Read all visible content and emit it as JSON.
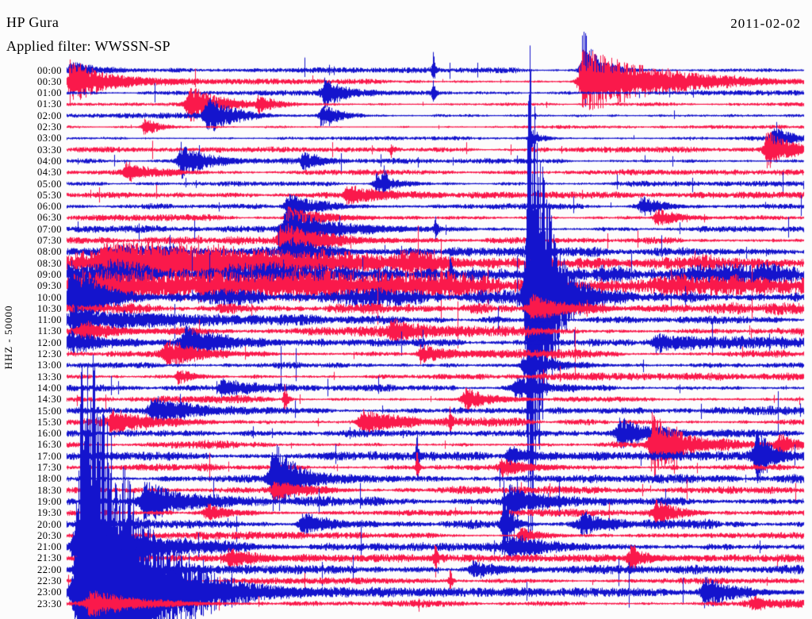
{
  "header": {
    "station": "HP Gura",
    "filter_line": "Applied filter: WWSSN-SP",
    "date": "2011-02-02"
  },
  "axis": {
    "vertical_label": "HHZ - 50000"
  },
  "colors": {
    "blue_trace": "#1414cd",
    "red_trace": "#fa194b",
    "background": "#fcfcfc",
    "text": "#000000"
  },
  "chart_data": {
    "type": "helicorder",
    "title": "HP Gura",
    "date": "2011-02-02",
    "filter": "WWSSN-SP",
    "channel_label": "HHZ - 50000",
    "minutes_per_row": 30,
    "legend": "traces alternate blue (hh:00) and red (hh:30)",
    "rows": [
      {
        "label": "00:00",
        "color": "blue",
        "activity": 2.2
      },
      {
        "label": "00:30",
        "color": "red",
        "activity": 2.2
      },
      {
        "label": "01:00",
        "color": "blue",
        "activity": 2.0
      },
      {
        "label": "01:30",
        "color": "red",
        "activity": 2.0
      },
      {
        "label": "02:00",
        "color": "blue",
        "activity": 2.2
      },
      {
        "label": "02:30",
        "color": "red",
        "activity": 1.8
      },
      {
        "label": "03:00",
        "color": "blue",
        "activity": 2.0
      },
      {
        "label": "03:30",
        "color": "red",
        "activity": 2.2
      },
      {
        "label": "04:00",
        "color": "blue",
        "activity": 2.5
      },
      {
        "label": "04:30",
        "color": "red",
        "activity": 2.2
      },
      {
        "label": "05:00",
        "color": "blue",
        "activity": 2.2
      },
      {
        "label": "05:30",
        "color": "red",
        "activity": 2.5
      },
      {
        "label": "06:00",
        "color": "blue",
        "activity": 2.8
      },
      {
        "label": "06:30",
        "color": "red",
        "activity": 2.5
      },
      {
        "label": "07:00",
        "color": "blue",
        "activity": 3.0
      },
      {
        "label": "07:30",
        "color": "red",
        "activity": 3.5
      },
      {
        "label": "08:00",
        "color": "blue",
        "activity": 5.0
      },
      {
        "label": "08:30",
        "color": "red",
        "activity": 11.0
      },
      {
        "label": "09:00",
        "color": "blue",
        "activity": 13.0
      },
      {
        "label": "09:30",
        "color": "red",
        "activity": 13.0
      },
      {
        "label": "10:00",
        "color": "blue",
        "activity": 9.0
      },
      {
        "label": "10:30",
        "color": "red",
        "activity": 5.5
      },
      {
        "label": "11:00",
        "color": "blue",
        "activity": 4.0
      },
      {
        "label": "11:30",
        "color": "red",
        "activity": 4.0
      },
      {
        "label": "12:00",
        "color": "blue",
        "activity": 4.5
      },
      {
        "label": "12:30",
        "color": "red",
        "activity": 3.5
      },
      {
        "label": "13:00",
        "color": "blue",
        "activity": 3.5
      },
      {
        "label": "13:30",
        "color": "red",
        "activity": 3.0
      },
      {
        "label": "14:00",
        "color": "blue",
        "activity": 3.5
      },
      {
        "label": "14:30",
        "color": "red",
        "activity": 3.0
      },
      {
        "label": "15:00",
        "color": "blue",
        "activity": 3.5
      },
      {
        "label": "15:30",
        "color": "red",
        "activity": 3.5
      },
      {
        "label": "16:00",
        "color": "blue",
        "activity": 4.0
      },
      {
        "label": "16:30",
        "color": "red",
        "activity": 3.5
      },
      {
        "label": "17:00",
        "color": "blue",
        "activity": 3.5
      },
      {
        "label": "17:30",
        "color": "red",
        "activity": 3.0
      },
      {
        "label": "18:00",
        "color": "blue",
        "activity": 3.5
      },
      {
        "label": "18:30",
        "color": "red",
        "activity": 3.0
      },
      {
        "label": "19:00",
        "color": "blue",
        "activity": 4.0
      },
      {
        "label": "19:30",
        "color": "red",
        "activity": 3.0
      },
      {
        "label": "20:00",
        "color": "blue",
        "activity": 4.5
      },
      {
        "label": "20:30",
        "color": "red",
        "activity": 3.0
      },
      {
        "label": "21:00",
        "color": "blue",
        "activity": 4.5
      },
      {
        "label": "21:30",
        "color": "red",
        "activity": 3.0
      },
      {
        "label": "22:00",
        "color": "blue",
        "activity": 3.5
      },
      {
        "label": "22:30",
        "color": "red",
        "activity": 2.5
      },
      {
        "label": "23:00",
        "color": "blue",
        "activity": 3.5
      },
      {
        "label": "23:30",
        "color": "red",
        "activity": 3.0
      }
    ],
    "events": [
      {
        "row": 0,
        "t": 0.004,
        "amp": 12,
        "attack": 2,
        "decay": 30
      },
      {
        "row": 0,
        "t": 0.497,
        "amp": 28,
        "attack": 1,
        "decay": 2
      },
      {
        "row": 0,
        "t": 0.7,
        "amp": 55,
        "attack": 2,
        "decay": 18
      },
      {
        "row": 1,
        "t": 0.004,
        "amp": 30,
        "attack": 2,
        "decay": 45
      },
      {
        "row": 1,
        "t": 0.698,
        "amp": 46,
        "attack": 3,
        "decay": 95
      },
      {
        "row": 2,
        "t": 0.35,
        "amp": 20,
        "attack": 3,
        "decay": 28
      },
      {
        "row": 2,
        "t": 0.497,
        "amp": 22,
        "attack": 1,
        "decay": 2
      },
      {
        "row": 3,
        "t": 0.165,
        "amp": 26,
        "attack": 3,
        "decay": 38
      },
      {
        "row": 3,
        "t": 0.26,
        "amp": 10,
        "attack": 2,
        "decay": 22
      },
      {
        "row": 4,
        "t": 0.19,
        "amp": 24,
        "attack": 3,
        "decay": 30
      },
      {
        "row": 4,
        "t": 0.345,
        "amp": 16,
        "attack": 2,
        "decay": 20
      },
      {
        "row": 5,
        "t": 0.105,
        "amp": 12,
        "attack": 2,
        "decay": 20
      },
      {
        "row": 6,
        "t": 0.63,
        "amp": 14,
        "attack": 2,
        "decay": 12
      },
      {
        "row": 6,
        "t": 0.96,
        "amp": 14,
        "attack": 4,
        "decay": 25
      },
      {
        "row": 7,
        "t": 0.44,
        "amp": 10,
        "attack": 1,
        "decay": 3
      },
      {
        "row": 7,
        "t": 0.95,
        "amp": 26,
        "attack": 3,
        "decay": 30
      },
      {
        "row": 8,
        "t": 0.155,
        "amp": 24,
        "attack": 3,
        "decay": 32
      },
      {
        "row": 8,
        "t": 0.32,
        "amp": 12,
        "attack": 2,
        "decay": 18
      },
      {
        "row": 9,
        "t": 0.08,
        "amp": 12,
        "attack": 2,
        "decay": 28
      },
      {
        "row": 10,
        "t": 0.42,
        "amp": 14,
        "attack": 3,
        "decay": 26
      },
      {
        "row": 10,
        "t": 0.43,
        "amp": 25,
        "attack": 1,
        "decay": 2
      },
      {
        "row": 11,
        "t": 0.38,
        "amp": 12,
        "attack": 3,
        "decay": 36
      },
      {
        "row": 12,
        "t": 0.3,
        "amp": 18,
        "attack": 4,
        "decay": 36
      },
      {
        "row": 12,
        "t": 0.78,
        "amp": 13,
        "attack": 3,
        "decay": 26
      },
      {
        "row": 13,
        "t": 0.3,
        "amp": 15,
        "attack": 3,
        "decay": 45
      },
      {
        "row": 13,
        "t": 0.8,
        "amp": 12,
        "attack": 3,
        "decay": 30
      },
      {
        "row": 14,
        "t": 0.295,
        "amp": 28,
        "attack": 4,
        "decay": 55
      },
      {
        "row": 14,
        "t": 0.5,
        "amp": 20,
        "attack": 1,
        "decay": 2
      },
      {
        "row": 15,
        "t": 0.29,
        "amp": 22,
        "attack": 3,
        "decay": 55
      },
      {
        "row": 16,
        "t": 0.295,
        "amp": 18,
        "attack": 3,
        "decay": 40
      },
      {
        "row": 17,
        "t": 0.05,
        "amp": 16,
        "attack": 6,
        "decay": 160
      },
      {
        "row": 18,
        "t": 0.52,
        "amp": 26,
        "attack": 1,
        "decay": 3
      },
      {
        "row": 20,
        "t": 0.005,
        "amp": 42,
        "attack": 3,
        "decay": 30
      },
      {
        "row": 20,
        "t": 0.626,
        "amp": 385,
        "attack": 2,
        "decay": 22
      },
      {
        "row": 21,
        "t": 0.63,
        "amp": 16,
        "attack": 3,
        "decay": 40
      },
      {
        "row": 22,
        "t": 0.01,
        "amp": 16,
        "attack": 8,
        "decay": 70
      },
      {
        "row": 23,
        "t": 0.02,
        "amp": 10,
        "attack": 5,
        "decay": 55
      },
      {
        "row": 23,
        "t": 0.44,
        "amp": 13,
        "attack": 3,
        "decay": 32
      },
      {
        "row": 24,
        "t": 0.005,
        "amp": 13,
        "attack": 8,
        "decay": 55
      },
      {
        "row": 24,
        "t": 0.16,
        "amp": 20,
        "attack": 4,
        "decay": 40
      },
      {
        "row": 24,
        "t": 0.8,
        "amp": 12,
        "attack": 3,
        "decay": 36
      },
      {
        "row": 25,
        "t": 0.135,
        "amp": 16,
        "attack": 4,
        "decay": 40
      },
      {
        "row": 25,
        "t": 0.48,
        "amp": 13,
        "attack": 3,
        "decay": 36
      },
      {
        "row": 26,
        "t": 0.62,
        "amp": 15,
        "attack": 3,
        "decay": 32
      },
      {
        "row": 27,
        "t": 0.15,
        "amp": 10,
        "attack": 2,
        "decay": 22
      },
      {
        "row": 28,
        "t": 0.21,
        "amp": 11,
        "attack": 3,
        "decay": 26
      },
      {
        "row": 28,
        "t": 0.61,
        "amp": 15,
        "attack": 3,
        "decay": 32
      },
      {
        "row": 29,
        "t": 0.295,
        "amp": 24,
        "attack": 1,
        "decay": 3
      },
      {
        "row": 29,
        "t": 0.54,
        "amp": 15,
        "attack": 3,
        "decay": 32
      },
      {
        "row": 30,
        "t": 0.115,
        "amp": 18,
        "attack": 3,
        "decay": 40
      },
      {
        "row": 31,
        "t": 0.06,
        "amp": 15,
        "attack": 3,
        "decay": 45
      },
      {
        "row": 31,
        "t": 0.4,
        "amp": 17,
        "attack": 3,
        "decay": 36
      },
      {
        "row": 31,
        "t": 0.52,
        "amp": 20,
        "attack": 1,
        "decay": 2
      },
      {
        "row": 32,
        "t": 0.75,
        "amp": 19,
        "attack": 4,
        "decay": 36
      },
      {
        "row": 33,
        "t": 0.794,
        "amp": 42,
        "attack": 3,
        "decay": 35
      },
      {
        "row": 33,
        "t": 0.965,
        "amp": 15,
        "attack": 3,
        "decay": 26
      },
      {
        "row": 34,
        "t": 0.475,
        "amp": 38,
        "attack": 1,
        "decay": 2
      },
      {
        "row": 34,
        "t": 0.6,
        "amp": 13,
        "attack": 3,
        "decay": 28
      },
      {
        "row": 34,
        "t": 0.937,
        "amp": 40,
        "attack": 3,
        "decay": 15
      },
      {
        "row": 35,
        "t": 0.475,
        "amp": 26,
        "attack": 1,
        "decay": 2
      },
      {
        "row": 35,
        "t": 0.59,
        "amp": 11,
        "attack": 3,
        "decay": 28
      },
      {
        "row": 36,
        "t": 0.28,
        "amp": 52,
        "attack": 3,
        "decay": 26
      },
      {
        "row": 37,
        "t": 0.28,
        "amp": 12,
        "attack": 2,
        "decay": 36
      },
      {
        "row": 38,
        "t": 0.105,
        "amp": 26,
        "attack": 4,
        "decay": 45
      },
      {
        "row": 38,
        "t": 0.6,
        "amp": 17,
        "attack": 3,
        "decay": 36
      },
      {
        "row": 39,
        "t": 0.19,
        "amp": 11,
        "attack": 3,
        "decay": 32
      },
      {
        "row": 39,
        "t": 0.8,
        "amp": 16,
        "attack": 3,
        "decay": 20
      },
      {
        "row": 40,
        "t": 0.32,
        "amp": 15,
        "attack": 4,
        "decay": 40
      },
      {
        "row": 40,
        "t": 0.593,
        "amp": 55,
        "attack": 2,
        "decay": 8
      },
      {
        "row": 40,
        "t": 0.7,
        "amp": 16,
        "attack": 6,
        "decay": 30
      },
      {
        "row": 41,
        "t": 0.615,
        "amp": 11,
        "attack": 2,
        "decay": 26
      },
      {
        "row": 42,
        "t": 0.012,
        "amp": 60,
        "attack": 3,
        "decay": 55
      },
      {
        "row": 42,
        "t": 0.6,
        "amp": 13,
        "attack": 3,
        "decay": 36
      },
      {
        "row": 43,
        "t": 0.22,
        "amp": 11,
        "attack": 3,
        "decay": 36
      },
      {
        "row": 43,
        "t": 0.5,
        "amp": 30,
        "attack": 1,
        "decay": 2
      },
      {
        "row": 43,
        "t": 0.765,
        "amp": 18,
        "attack": 3,
        "decay": 18
      },
      {
        "row": 44,
        "t": 0.012,
        "amp": 22,
        "attack": 2,
        "decay": 36
      },
      {
        "row": 44,
        "t": 0.55,
        "amp": 11,
        "attack": 3,
        "decay": 30
      },
      {
        "row": 45,
        "t": 0.52,
        "amp": 20,
        "attack": 1,
        "decay": 2
      },
      {
        "row": 46,
        "t": 0.02,
        "amp": 385,
        "attack": 4,
        "decay": 60
      },
      {
        "row": 46,
        "t": 0.865,
        "amp": 20,
        "attack": 4,
        "decay": 40
      },
      {
        "row": 47,
        "t": 0.03,
        "amp": 16,
        "attack": 4,
        "decay": 60
      },
      {
        "row": 47,
        "t": 0.93,
        "amp": 8,
        "attack": 2,
        "decay": 20
      }
    ]
  }
}
